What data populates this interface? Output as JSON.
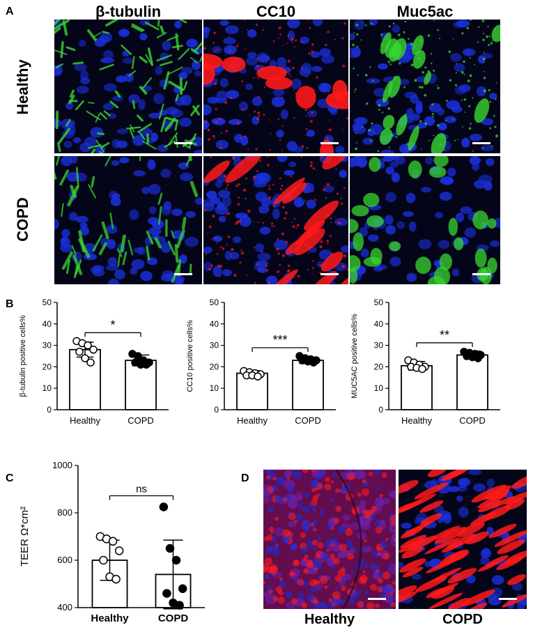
{
  "panels": {
    "A": {
      "letter": "A",
      "columns": [
        "β-tubulin",
        "CC10",
        "Muc5ac"
      ],
      "rows": [
        "Healthy",
        "COPD"
      ]
    },
    "B": {
      "letter": "B"
    },
    "C": {
      "letter": "C"
    },
    "D": {
      "letter": "D",
      "captions": [
        "Healthy",
        "COPD"
      ]
    }
  },
  "colors": {
    "nuclei": "#1a2fd6",
    "green_stain": "#38d62f",
    "red_stain": "#ff1a1a",
    "background": "#05051a"
  },
  "chart_data": [
    {
      "type": "bar",
      "panel": "B-1",
      "categories": [
        "Healthy",
        "COPD"
      ],
      "values": [
        28,
        23
      ],
      "errors": [
        3.5,
        2.5
      ],
      "points": [
        [
          32,
          31,
          30,
          28,
          27,
          24,
          22
        ],
        [
          26,
          25,
          23,
          22,
          22,
          21,
          21
        ]
      ],
      "markers": [
        "open",
        "filled"
      ],
      "ylabel": "β-tubulin positive cells%",
      "ylim": [
        0,
        50
      ],
      "yticks": [
        0,
        10,
        20,
        30,
        40,
        50
      ],
      "significance": "*"
    },
    {
      "type": "bar",
      "panel": "B-2",
      "categories": [
        "Healthy",
        "COPD"
      ],
      "values": [
        17,
        23
      ],
      "errors": [
        1.2,
        1.5
      ],
      "points": [
        [
          18,
          17.5,
          17,
          16.5,
          16,
          16,
          15.5
        ],
        [
          25,
          24,
          23.5,
          23,
          23,
          22.5,
          22
        ]
      ],
      "markers": [
        "open",
        "filled"
      ],
      "ylabel": "CC10 positive cells%",
      "ylim": [
        0,
        50
      ],
      "yticks": [
        0,
        10,
        20,
        30,
        40,
        50
      ],
      "significance": "***"
    },
    {
      "type": "bar",
      "panel": "B-3",
      "categories": [
        "Healthy",
        "COPD"
      ],
      "values": [
        20.5,
        25.5
      ],
      "errors": [
        2,
        1.8
      ],
      "points": [
        [
          23,
          22,
          21,
          20,
          20,
          19.5,
          19
        ],
        [
          27,
          26.5,
          26,
          25.5,
          25,
          24.5,
          24
        ]
      ],
      "markers": [
        "open",
        "filled"
      ],
      "ylabel": "MUC5AC positive cells%",
      "ylim": [
        0,
        50
      ],
      "yticks": [
        0,
        10,
        20,
        30,
        40,
        50
      ],
      "significance": "**"
    },
    {
      "type": "bar",
      "panel": "C",
      "categories": [
        "Healthy",
        "COPD"
      ],
      "values": [
        600,
        540
      ],
      "errors": [
        85,
        145
      ],
      "points": [
        [
          700,
          690,
          680,
          640,
          600,
          530,
          520
        ],
        [
          825,
          650,
          600,
          480,
          460,
          420,
          410
        ]
      ],
      "markers": [
        "open",
        "filled"
      ],
      "ylabel": "TEER Ω*cm²",
      "ylim": [
        400,
        1000
      ],
      "yticks": [
        400,
        600,
        800,
        1000
      ],
      "significance": "ns"
    }
  ]
}
